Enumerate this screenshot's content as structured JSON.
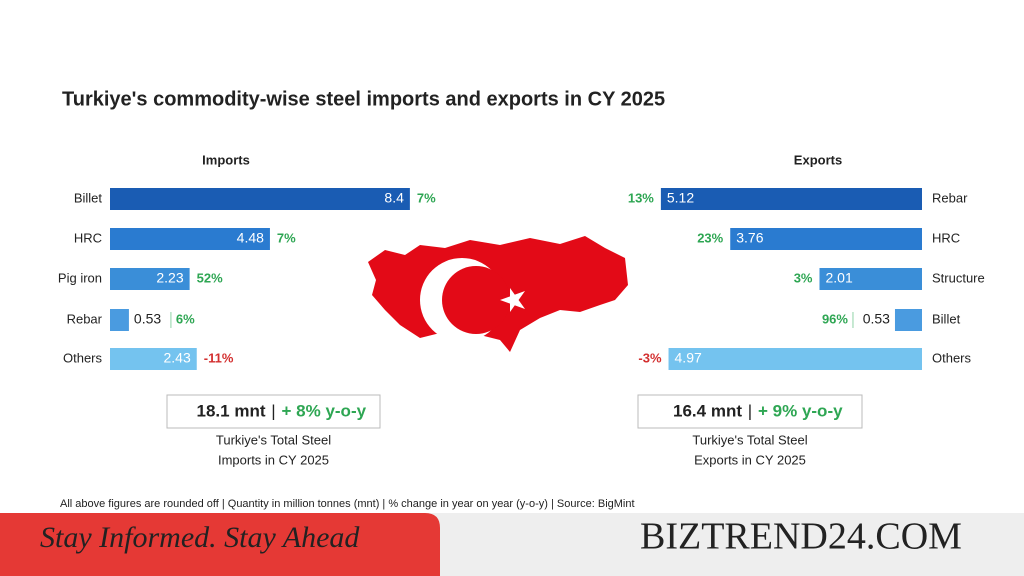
{
  "title": "Turkiye's commodity-wise steel imports and exports in CY 2025",
  "chart_data": [
    {
      "type": "bar",
      "title": "Imports",
      "direction": "left-to-right",
      "categories": [
        "Billet",
        "HRC",
        "Pig iron",
        "Rebar",
        "Others"
      ],
      "values": [
        8.4,
        4.48,
        2.23,
        0.53,
        2.43
      ],
      "changes": [
        7,
        7,
        52,
        6,
        -11
      ],
      "change_labels": [
        "7%",
        "7%",
        "52%",
        "6%",
        "-11%"
      ],
      "colors": [
        "#1a5cb3",
        "#2a7bd0",
        "#3a8ed8",
        "#4a9be0",
        "#74c3ef"
      ],
      "total": "18.1 mnt",
      "total_change": "+ 8% y-o-y",
      "total_caption": [
        "Turkiye's Total Steel",
        "Imports in CY 2025"
      ]
    },
    {
      "type": "bar",
      "title": "Exports",
      "direction": "right-to-left",
      "categories": [
        "Rebar",
        "HRC",
        "Structure",
        "Billet",
        "Others"
      ],
      "values": [
        5.12,
        3.76,
        2.01,
        0.53,
        4.97
      ],
      "changes": [
        13,
        23,
        3,
        96,
        -3
      ],
      "change_labels": [
        "13%",
        "23%",
        "3%",
        "96%",
        "-3%"
      ],
      "colors": [
        "#1a5cb3",
        "#2a7bd0",
        "#3a8ed8",
        "#4a9be0",
        "#74c3ef"
      ],
      "total": "16.4 mnt",
      "total_change": "+ 9% y-o-y",
      "total_caption": [
        "Turkiye's Total Steel",
        "Exports in CY 2025"
      ]
    }
  ],
  "footnote": "All above figures are rounded off | Quantity in million tonnes (mnt) | % change in year on year (y-o-y) | Source: BigMint",
  "banner": {
    "tagline": "Stay Informed. Stay Ahead",
    "brand": "BIZTREND24.COM"
  }
}
